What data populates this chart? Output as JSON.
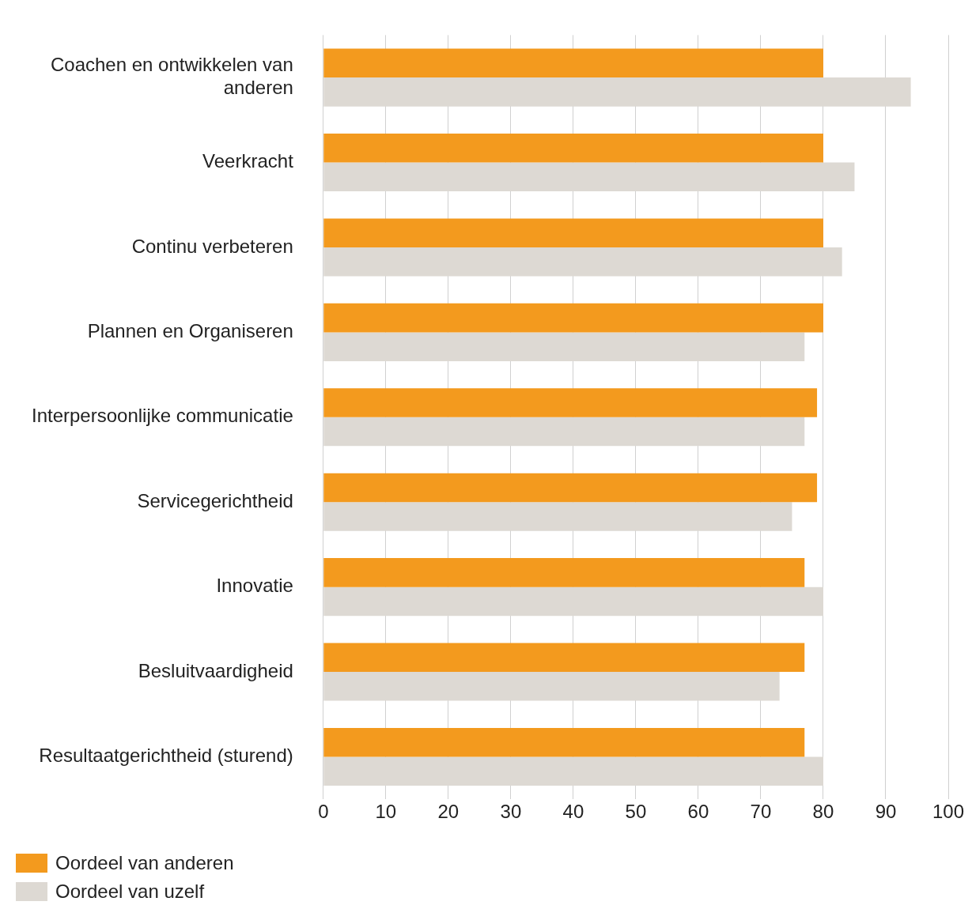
{
  "chart_data": {
    "type": "bar",
    "orientation": "horizontal",
    "categories": [
      "Coachen en ontwikkelen van anderen",
      "Veerkracht",
      "Continu verbeteren",
      "Plannen en Organiseren",
      "Interpersoonlijke communicatie",
      "Servicegerichtheid",
      "Innovatie",
      "Besluitvaardigheid",
      "Resultaatgerichtheid (sturend)"
    ],
    "series": [
      {
        "name": "Oordeel van anderen",
        "color": "#f39a1e",
        "values": [
          80,
          80,
          80,
          80,
          79,
          79,
          77,
          77,
          77
        ]
      },
      {
        "name": "Oordeel van uzelf",
        "color": "#ddd9d3",
        "values": [
          94,
          85,
          83,
          77,
          77,
          75,
          80,
          73,
          80
        ]
      }
    ],
    "xlim": [
      0,
      100
    ],
    "xticks": [
      0,
      10,
      20,
      30,
      40,
      50,
      60,
      70,
      80,
      90,
      100
    ],
    "grid": "x",
    "legend": "bottom left"
  }
}
